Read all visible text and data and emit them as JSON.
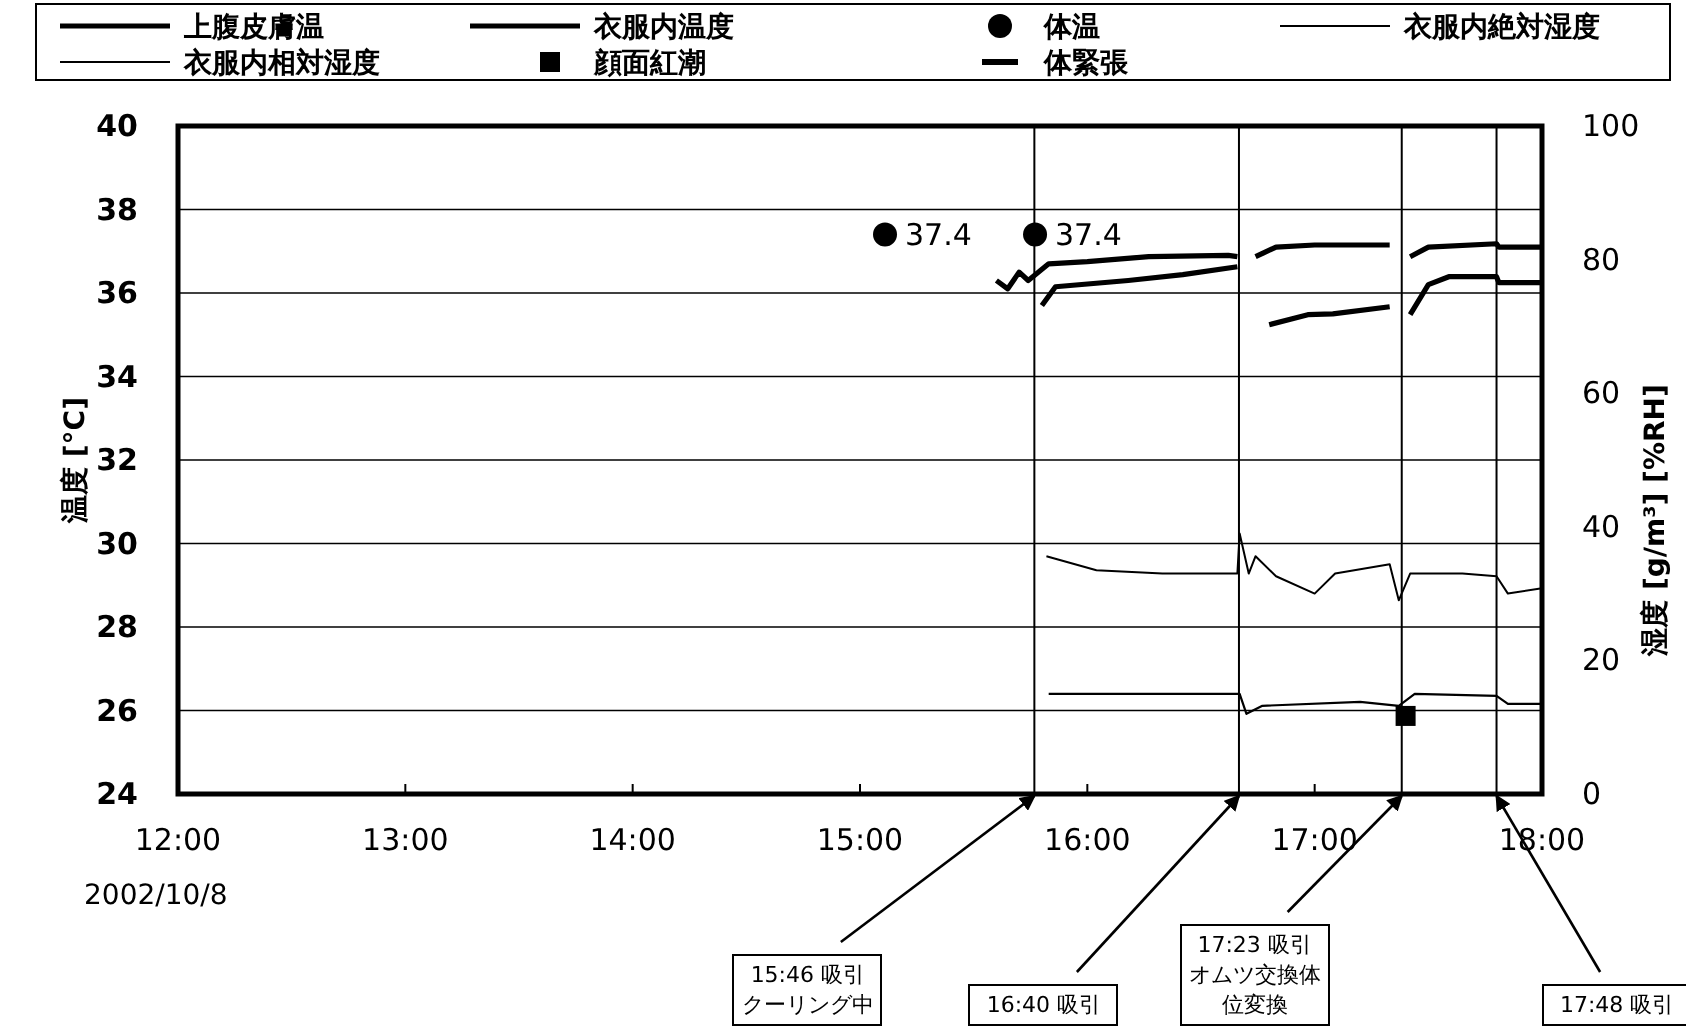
{
  "chart_data": {
    "type": "line",
    "ylabel": "温度 [°C]",
    "y2label": "湿度 [g/m³] [%RH]",
    "xlim": [
      12,
      18
    ],
    "xticks": [
      {
        "value": 12,
        "label": "12:00"
      },
      {
        "value": 13,
        "label": "13:00"
      },
      {
        "value": 14,
        "label": "14:00"
      },
      {
        "value": 15,
        "label": "15:00"
      },
      {
        "value": 16,
        "label": "16:00"
      },
      {
        "value": 17,
        "label": "17:00"
      },
      {
        "value": 18,
        "label": "18:00"
      }
    ],
    "ylim": [
      24,
      40
    ],
    "yticks": [
      24,
      26,
      28,
      30,
      32,
      34,
      36,
      38,
      40
    ],
    "y2lim": [
      0,
      100
    ],
    "y2ticks": [
      0,
      20,
      40,
      60,
      80,
      100
    ],
    "grid": "y",
    "legend": "top",
    "series": [
      {
        "name": "上腹皮膚温",
        "color": "#000000",
        "x": [
          15.6,
          15.65,
          15.7,
          15.74,
          15.83,
          16.0,
          16.27,
          16.62,
          16.66,
          null,
          16.74,
          16.83,
          17.0,
          17.33,
          null,
          17.42,
          17.5,
          17.8,
          17.81,
          18.0
        ],
        "values": [
          36.3,
          36.1,
          36.5,
          36.3,
          36.7,
          36.75,
          36.87,
          36.9,
          36.87,
          null,
          36.87,
          37.1,
          37.15,
          37.15,
          null,
          36.87,
          37.1,
          37.18,
          37.1,
          37.1
        ]
      },
      {
        "name": "衣服内温度",
        "color": "#000000",
        "x": [
          15.8,
          15.86,
          16.18,
          16.42,
          16.66,
          null,
          16.8,
          16.97,
          17.08,
          17.33,
          null,
          17.42,
          17.5,
          17.59,
          17.8,
          17.81,
          18.0
        ],
        "values": [
          35.7,
          36.15,
          36.3,
          36.44,
          36.63,
          null,
          35.24,
          35.48,
          35.5,
          35.67,
          null,
          35.48,
          36.2,
          36.39,
          36.39,
          36.25,
          36.25
        ]
      },
      {
        "name": "体温",
        "type": "scatter",
        "marker": "circle",
        "color": "#000000",
        "x": [
          15.11,
          15.77
        ],
        "values": [
          37.4,
          37.4
        ],
        "value_labels": [
          "37.4",
          "37.4"
        ]
      },
      {
        "name": "衣服内絶対湿度",
        "axis": "y2",
        "color": "#000000",
        "x": [
          15.83,
          16.33,
          16.67,
          16.7,
          16.77,
          17.2,
          17.37,
          17.44,
          17.8,
          17.85,
          18.0
        ],
        "values": [
          15,
          15,
          15,
          12,
          13.2,
          13.8,
          13.2,
          15,
          14.7,
          13.5,
          13.5
        ]
      },
      {
        "name": "衣服内相対湿度",
        "axis": "y2",
        "color": "#000000",
        "x": [
          15.82,
          16.04,
          16.33,
          16.66,
          16.67,
          16.71,
          16.74,
          16.83,
          17.0,
          17.09,
          17.33,
          17.37,
          17.42,
          17.65,
          17.8,
          17.85,
          18.0
        ],
        "values": [
          35.6,
          33.5,
          33,
          33,
          39,
          33,
          35.6,
          32.6,
          30,
          33,
          34.4,
          29,
          33,
          33,
          32.6,
          30,
          30.8
        ]
      },
      {
        "name": "顔面紅潮",
        "type": "scatter",
        "marker": "square",
        "color": "#000000",
        "x": [
          17.4
        ],
        "values": [
          25.87
        ]
      },
      {
        "name": "体緊張",
        "type": "scatter",
        "color": "#000000"
      }
    ],
    "ref_lines": [
      {
        "axis": "x",
        "value": 15.767
      },
      {
        "axis": "x",
        "value": 16.667
      },
      {
        "axis": "x",
        "value": 17.383
      },
      {
        "axis": "x",
        "value": 17.8
      }
    ],
    "annotations": [
      "2002/10/8",
      {
        "text": "15:46 吸引クーリング中",
        "x": 15.767,
        "y": 24
      },
      {
        "text": "16:40 吸引",
        "x": 16.667,
        "y": 24
      },
      {
        "text": "17:23 吸引オムツ交換体位変換",
        "x": 17.383,
        "y": 24
      },
      {
        "text": "17:48 吸引",
        "x": 17.8,
        "y": 24
      }
    ]
  }
}
